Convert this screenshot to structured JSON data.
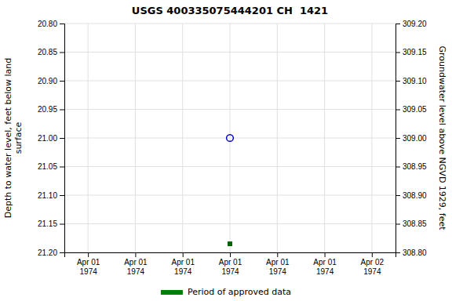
{
  "chart_data": {
    "type": "scatter",
    "title": "USGS 400335075444201 CH  1421",
    "y_label": "Depth to water level, feet below land\nsurface",
    "y2_label": "Groundwater level above NGVD 1929, feet",
    "categories": [
      "Apr 01\n1974",
      "Apr 01\n1974",
      "Apr 01\n1974",
      "Apr 01\n1974",
      "Apr 01\n1974",
      "Apr 01\n1974",
      "Apr 02\n1974"
    ],
    "series": [
      {
        "color": "#0000cc",
        "marker": "circle-open",
        "values": [
          null,
          null,
          null,
          21.0,
          null,
          null,
          null
        ]
      },
      {
        "color": "#006400",
        "marker": "square",
        "values": [
          null,
          null,
          null,
          21.185,
          null,
          null,
          null
        ]
      }
    ],
    "ylim": [
      21.2,
      20.8
    ],
    "yticks": [
      {
        "value": 20.8,
        "label": "20.80"
      },
      20.85,
      {
        "value": 20.9,
        "label": "20.90"
      },
      20.95,
      {
        "value": 21.0,
        "label": "21.00"
      },
      21.05,
      {
        "value": 21.1,
        "label": "21.10"
      },
      21.15,
      {
        "value": 21.2,
        "label": "21.20"
      }
    ],
    "y2lim": [
      308.8,
      309.2
    ],
    "y2ticks": [
      {
        "value": 308.8,
        "label": "308.80"
      },
      308.85,
      {
        "value": 308.9,
        "label": "308.90"
      },
      308.95,
      {
        "value": 309.0,
        "label": "309.00"
      },
      309.05,
      {
        "value": 309.1,
        "label": "309.10"
      },
      309.15,
      {
        "value": 309.2,
        "label": "309.20"
      }
    ],
    "grid": true,
    "annotations": [
      {
        "text": "Period of approved data",
        "color": "#008000"
      }
    ]
  }
}
